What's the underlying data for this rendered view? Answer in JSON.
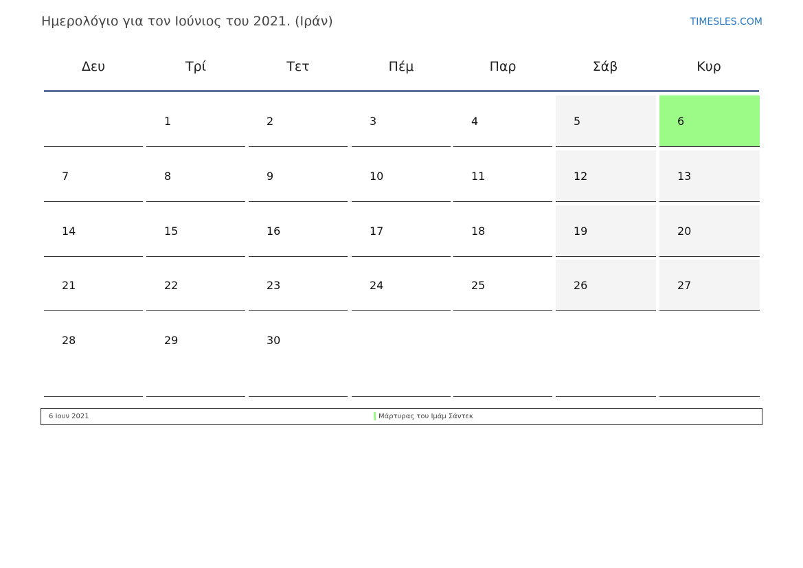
{
  "title": "Ημερολόγιο για τον Ιούνιος του 2021. (Ιράν)",
  "brand": "TIMESLES.COM",
  "colors": {
    "accent": "#5b739b",
    "holiday": "#9cfb87",
    "weekend": "#f4f4f4",
    "brand": "#2a7ac7"
  },
  "weekdays": [
    "Δευ",
    "Τρί",
    "Τετ",
    "Πέμ",
    "Παρ",
    "Σάβ",
    "Κυρ"
  ],
  "weeks": [
    [
      "",
      "1",
      "2",
      "3",
      "4",
      "5",
      "6"
    ],
    [
      "7",
      "8",
      "9",
      "10",
      "11",
      "12",
      "13"
    ],
    [
      "14",
      "15",
      "16",
      "17",
      "18",
      "19",
      "20"
    ],
    [
      "21",
      "22",
      "23",
      "24",
      "25",
      "26",
      "27"
    ],
    [
      "28",
      "29",
      "30",
      "",
      "",
      "",
      ""
    ]
  ],
  "holidays": [
    {
      "day": "6",
      "date": "6 Ιουν 2021",
      "name": "Μάρτυρας του Ιμάμ Σάντεκ"
    }
  ]
}
